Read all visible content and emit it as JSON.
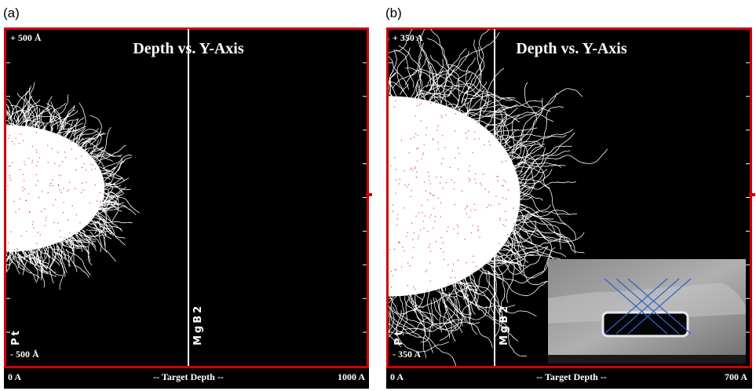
{
  "panels": [
    {
      "label": "(a)",
      "title": "Depth vs. Y-Axis",
      "y_top": "+ 500 Å",
      "y_bottom": "- 500 Å",
      "layer_left": "Pt",
      "layer_right": "MgB2",
      "x_axis": "-- Target Depth --",
      "x_min": "0 A",
      "x_max": "1000 A"
    },
    {
      "label": "(b)",
      "title": "Depth vs. Y-Axis",
      "y_top": "+ 350 A",
      "y_bottom": "- 350 A",
      "layer_left": "Pt",
      "layer_right": "MgB2",
      "x_axis": "-- Target Depth --",
      "x_min": "0 A",
      "x_max": "700 A"
    }
  ]
}
